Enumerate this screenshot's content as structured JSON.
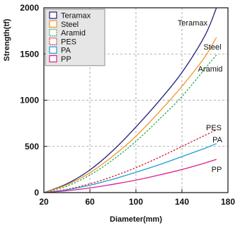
{
  "chart_data": {
    "type": "line",
    "xlabel": "Diameter(mm)",
    "ylabel": "Strength(tf)",
    "xlim": [
      20,
      180
    ],
    "ylim": [
      0,
      2000
    ],
    "x_ticks": [
      20,
      60,
      100,
      140,
      180
    ],
    "y_ticks": [
      0,
      500,
      1000,
      1500,
      2000
    ],
    "grid": true,
    "legend_position": "top-left",
    "x": [
      20,
      40,
      60,
      80,
      100,
      120,
      140,
      160,
      170
    ],
    "series": [
      {
        "name": "Teramax",
        "color": "#1f1f7a",
        "dash": "solid",
        "values": [
          0,
          95,
          245,
          455,
          710,
          990,
          1300,
          1700,
          2000
        ]
      },
      {
        "name": "Steel",
        "color": "#f0962d",
        "dash": "solid",
        "values": [
          0,
          85,
          215,
          395,
          610,
          870,
          1150,
          1470,
          1680
        ]
      },
      {
        "name": "Aramid",
        "color": "#2ea84a",
        "dash": "dotted",
        "values": [
          0,
          70,
          190,
          355,
          555,
          790,
          1040,
          1340,
          1490
        ]
      },
      {
        "name": "PES",
        "color": "#d11a2a",
        "dash": "dotted",
        "values": [
          0,
          35,
          95,
          175,
          270,
          380,
          500,
          620,
          680
        ]
      },
      {
        "name": "PA",
        "color": "#1aa0d8",
        "dash": "solid",
        "values": [
          0,
          30,
          80,
          145,
          220,
          300,
          390,
          480,
          530
        ]
      },
      {
        "name": "PP",
        "color": "#e0208a",
        "dash": "solid",
        "values": [
          0,
          20,
          50,
          90,
          135,
          190,
          250,
          320,
          360
        ]
      }
    ]
  }
}
